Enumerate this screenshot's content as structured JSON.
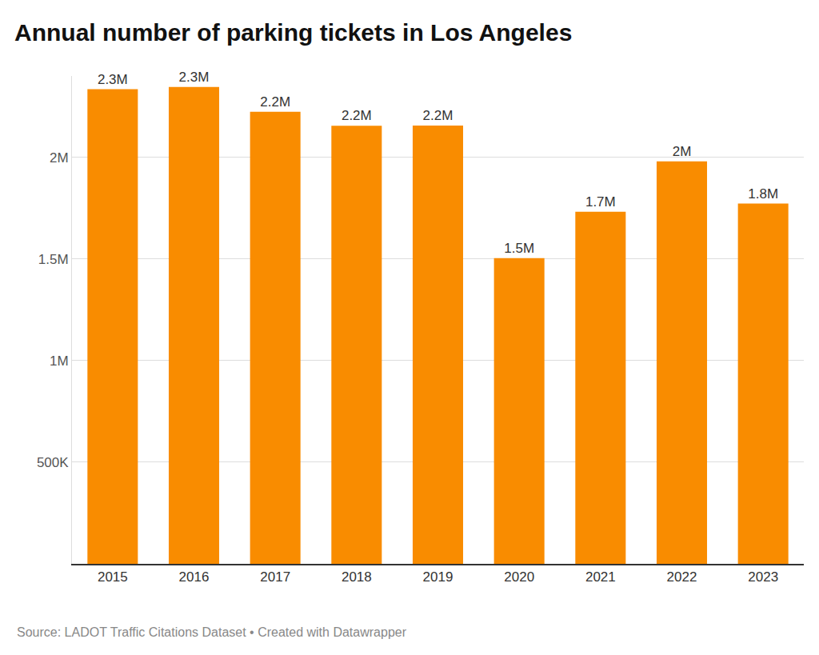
{
  "chart_data": {
    "type": "bar",
    "title": "Annual number of parking tickets in Los Angeles",
    "source": "Source: LADOT Traffic Citations Dataset • Created with Datawrapper",
    "categories": [
      "2015",
      "2016",
      "2017",
      "2018",
      "2019",
      "2020",
      "2021",
      "2022",
      "2023"
    ],
    "values": [
      2335000,
      2346000,
      2224000,
      2155000,
      2156000,
      1504000,
      1732000,
      1980000,
      1772000
    ],
    "value_labels": [
      "2.3M",
      "2.3M",
      "2.2M",
      "2.2M",
      "2.2M",
      "1.5M",
      "1.7M",
      "2M",
      "1.8M"
    ],
    "data_labels": true,
    "color": "#f98c00",
    "ylim": [
      0,
      2400000
    ],
    "yticks": [
      {
        "value": 500000,
        "label": "500K"
      },
      {
        "value": 1000000,
        "label": "1M"
      },
      {
        "value": 1500000,
        "label": "1.5M"
      },
      {
        "value": 2000000,
        "label": "2M"
      }
    ],
    "grid": true
  }
}
